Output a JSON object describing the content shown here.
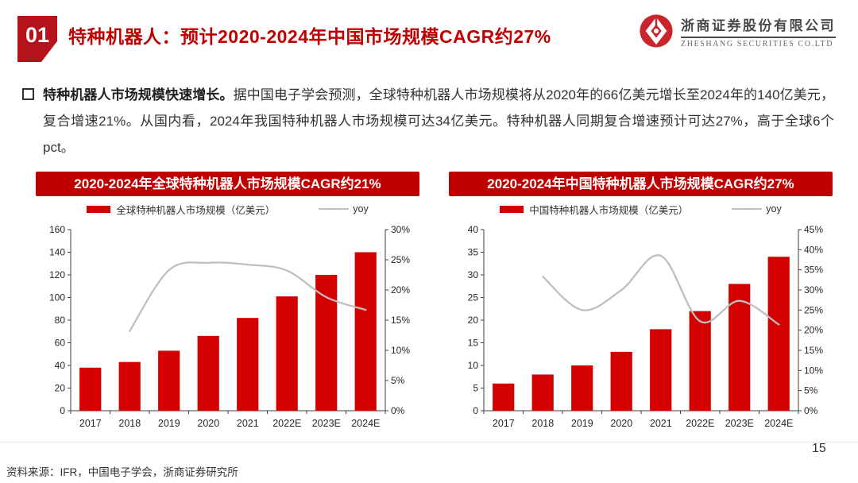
{
  "header": {
    "section_number": "01",
    "title": "特种机器人：预计2020-2024年中国市场规模CAGR约27%",
    "logo": {
      "company_cn": "浙商证券股份有限公司",
      "company_en": "ZHESHANG SECURITIES CO.LTD"
    }
  },
  "summary": {
    "lead": "特种机器人市场规模快速增长。",
    "body": "据中国电子学会预测，全球特种机器人市场规模将从2020年的66亿美元增长至2024年的140亿美元，复合增速21%。从国内看，2024年我国特种机器人市场规模可达34亿美元。特种机器人同期复合增速预计可达27%，高于全球6个pct。"
  },
  "chart_data": [
    {
      "type": "bar",
      "title": "2020-2024年全球特种机器人市场规模CAGR约21%",
      "categories": [
        "2017",
        "2018",
        "2019",
        "2020",
        "2021",
        "2022E",
        "2023E",
        "2024E"
      ],
      "series": [
        {
          "name": "全球特种机器人市场规模（亿美元）",
          "type": "bar",
          "axis": "left",
          "color": "#D40000",
          "values": [
            38,
            43,
            53,
            66,
            82,
            101,
            120,
            140
          ]
        },
        {
          "name": "yoy",
          "type": "line",
          "axis": "right",
          "color": "#BFBFBF",
          "values": [
            null,
            13.2,
            23.3,
            24.5,
            24.2,
            23.2,
            18.8,
            16.7
          ]
        }
      ],
      "left_axis": {
        "min": 0,
        "max": 160,
        "step": 20
      },
      "right_axis": {
        "min": 0,
        "max": 30,
        "step": 5,
        "suffix": "%"
      },
      "legend_position": "top",
      "grid": false
    },
    {
      "type": "bar",
      "title": "2020-2024年中国特种机器人市场规模CAGR约27%",
      "categories": [
        "2017",
        "2018",
        "2019",
        "2020",
        "2021",
        "2022E",
        "2023E",
        "2024E"
      ],
      "series": [
        {
          "name": "中国特种机器人市场规模（亿美元）",
          "type": "bar",
          "axis": "left",
          "color": "#D40000",
          "values": [
            6,
            8,
            10,
            13,
            18,
            22,
            28,
            34
          ]
        },
        {
          "name": "yoy",
          "type": "line",
          "axis": "right",
          "color": "#BFBFBF",
          "values": [
            null,
            33.3,
            25.0,
            30.0,
            38.5,
            22.2,
            27.3,
            21.4
          ]
        }
      ],
      "left_axis": {
        "min": 0,
        "max": 40,
        "step": 5
      },
      "right_axis": {
        "min": 0,
        "max": 45,
        "step": 5,
        "suffix": "%"
      },
      "legend_position": "top",
      "grid": false
    }
  ],
  "footer": {
    "source": "资料来源：IFR，中国电子学会，浙商证券研究所",
    "page_number": "15"
  },
  "colors": {
    "brand_red": "#C00000",
    "box_red": "#B5121B",
    "bar_red": "#D40000",
    "line_gray": "#BFBFBF",
    "text_dark": "#333333"
  }
}
